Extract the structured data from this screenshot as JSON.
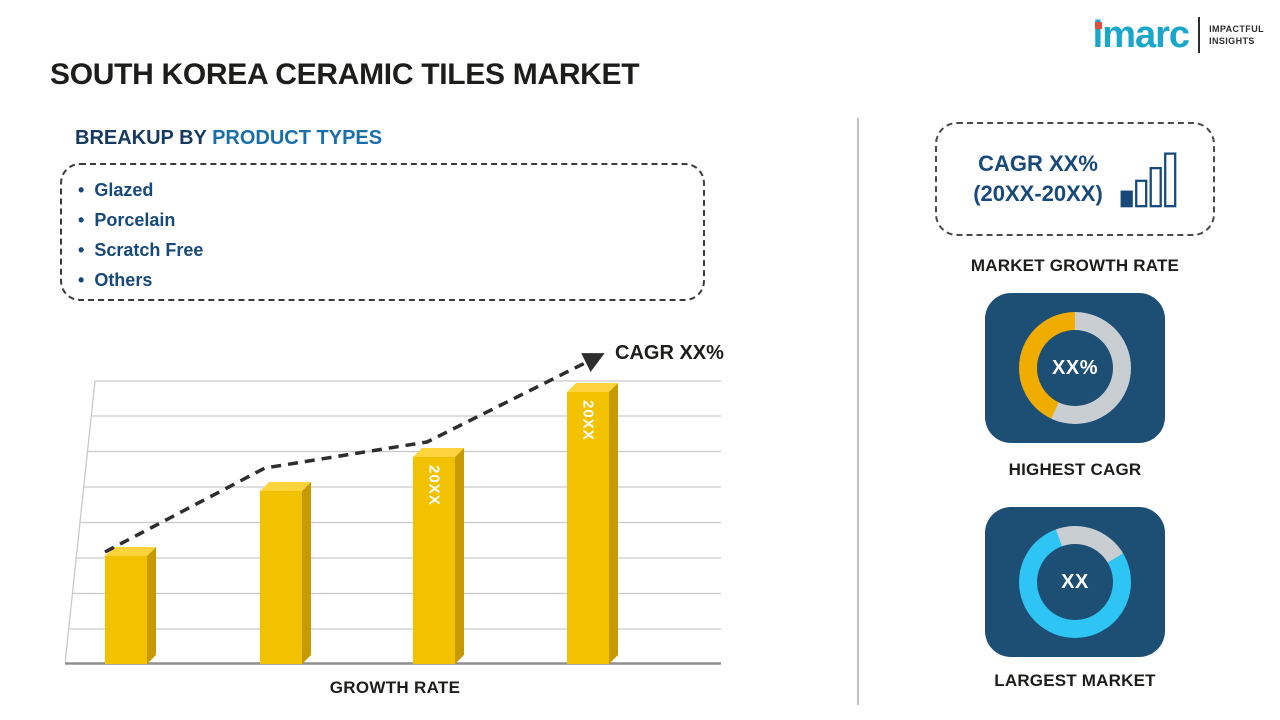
{
  "logo": {
    "brand": "imarc",
    "tagline": [
      "IMPACTFUL",
      "INSIGHTS"
    ]
  },
  "title": "SOUTH KOREA CERAMIC TILES MARKET",
  "breakup": {
    "heading_prefix": "BREAKUP BY",
    "heading_highlight": "PRODUCT TYPES",
    "items": [
      "Glazed",
      "Porcelain",
      "Scratch Free",
      "Others"
    ]
  },
  "right_panel": {
    "cagr_card": {
      "line1": "CAGR XX%",
      "line2": "(20XX-20XX)"
    },
    "market_growth_label": "MARKET GROWTH RATE",
    "highest_cagr": {
      "value": "XX%",
      "label": "HIGHEST CAGR"
    },
    "largest_market": {
      "value": "XX",
      "label": "LARGEST MARKET"
    }
  },
  "colors": {
    "navy": "#1D4E74",
    "bar_gold": "#F2C200",
    "cyan": "#2EC4F3",
    "ring_gray": "#C9CED3",
    "accent_blue": "#1B6FA8",
    "logo_cyan": "#19A6CB",
    "logo_dot_red": "#E44D3C"
  },
  "chart_data": {
    "type": "bar",
    "categories": [
      "",
      "",
      "20XX",
      "20XX"
    ],
    "values": [
      25,
      40,
      48,
      63
    ],
    "ylim": [
      0,
      70
    ],
    "xlabel": "GROWTH RATE",
    "annotation": "CAGR XX%",
    "bar_color": "#F2C200",
    "grid": true,
    "trendline": {
      "style": "dashed-arrow",
      "direction": "up"
    },
    "legend": "none"
  }
}
